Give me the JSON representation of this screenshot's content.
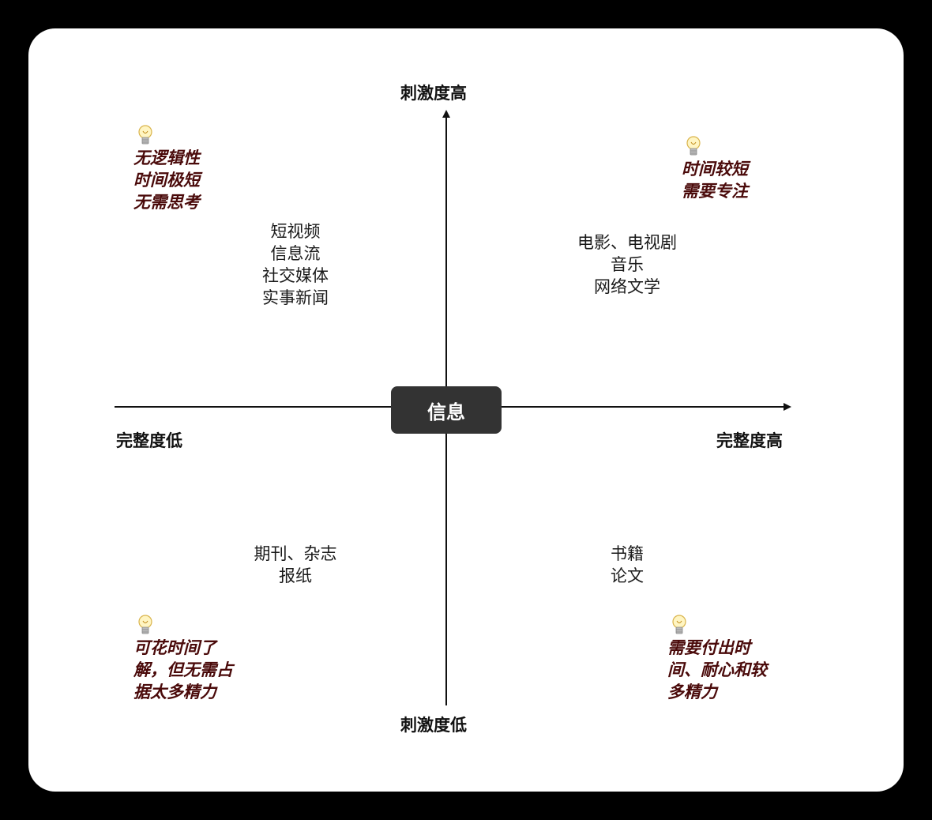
{
  "center_label": "信息",
  "axes": {
    "y_top": "刺激度高",
    "y_bottom": "刺激度低",
    "x_left": "完整度低",
    "x_right": "完整度高"
  },
  "quadrants": {
    "top_left": {
      "note": [
        "无逻辑性",
        "时间极短",
        "无需思考"
      ],
      "items": [
        "短视频",
        "信息流",
        "社交媒体",
        "实事新闻"
      ]
    },
    "top_right": {
      "note": [
        "时间较短",
        "需要专注"
      ],
      "items": [
        "电影、电视剧",
        "音乐",
        "网络文学"
      ]
    },
    "bottom_left": {
      "note": [
        "可花时间了",
        "解，但无需占",
        "据太多精力"
      ],
      "items": [
        "期刊、杂志",
        "报纸"
      ]
    },
    "bottom_right": {
      "note": [
        "需要付出时",
        "间、耐心和较",
        "多精力"
      ],
      "items": [
        "书籍",
        "论文"
      ]
    }
  },
  "icons": {
    "note_icon": "light-bulb-icon"
  },
  "colors": {
    "background": "#000000",
    "card": "#ffffff",
    "center_box": "#333333",
    "note_text": "#4a0a0a",
    "axis_line": "#111111"
  }
}
